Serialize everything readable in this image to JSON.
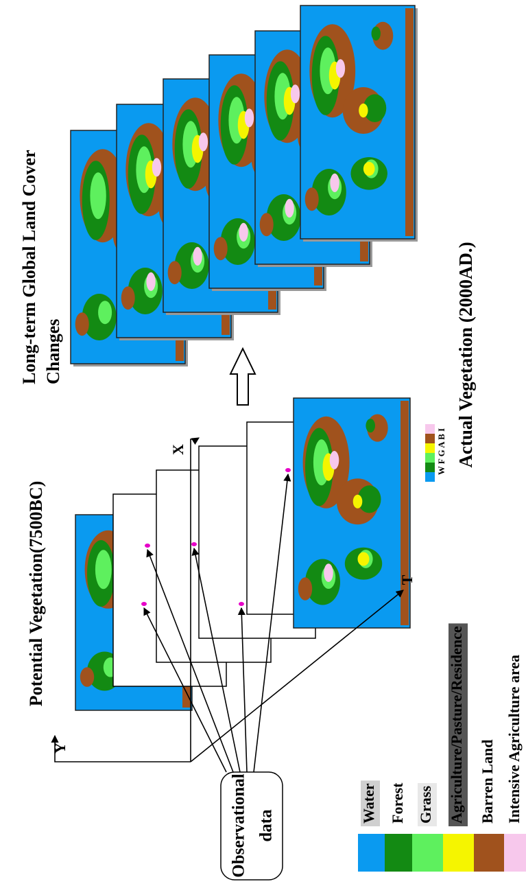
{
  "left_title": "Potential Vegetation(7500BC)",
  "right_title": [
    "Long-term Global Land Cover",
    "Changes"
  ],
  "bottom_title": "Actual Vegetation (2000AD.)",
  "observational": [
    "Observational",
    "data"
  ],
  "axes": {
    "y": "Y",
    "x": "X",
    "t": "T"
  },
  "mini_legend": "W F G A B I",
  "legend": [
    "Water",
    "Forest",
    "Grass",
    "Agriculture/Pasture/Residence",
    "Barren Land",
    "Intensive Agriculture area"
  ]
}
